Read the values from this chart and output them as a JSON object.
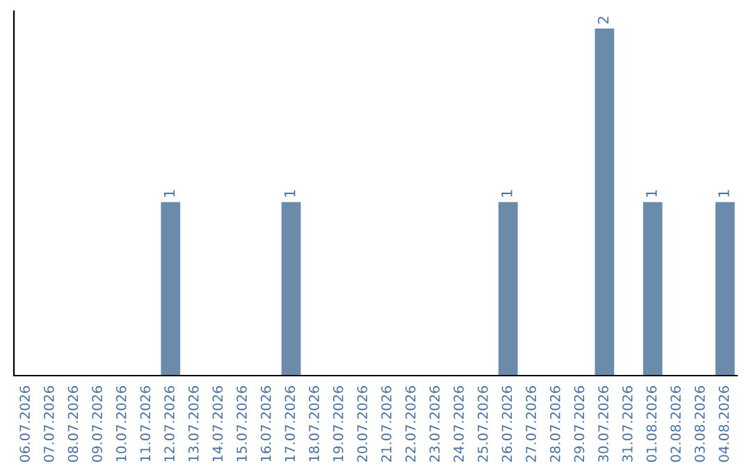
{
  "chart_data": {
    "type": "bar",
    "categories": [
      "06.07.2026",
      "07.07.2026",
      "08.07.2026",
      "09.07.2026",
      "10.07.2026",
      "11.07.2026",
      "12.07.2026",
      "13.07.2026",
      "14.07.2026",
      "15.07.2026",
      "16.07.2026",
      "17.07.2026",
      "18.07.2026",
      "19.07.2026",
      "20.07.2026",
      "21.07.2026",
      "22.07.2026",
      "23.07.2026",
      "24.07.2026",
      "25.07.2026",
      "26.07.2026",
      "27.07.2026",
      "28.07.2026",
      "29.07.2026",
      "30.07.2026",
      "31.07.2026",
      "01.08.2026",
      "02.08.2026",
      "03.08.2026",
      "04.08.2026"
    ],
    "values": [
      0,
      0,
      0,
      0,
      0,
      0,
      1,
      0,
      0,
      0,
      0,
      1,
      0,
      0,
      0,
      0,
      0,
      0,
      0,
      0,
      1,
      0,
      0,
      0,
      2,
      0,
      1,
      0,
      0,
      1
    ],
    "value_labels": [
      null,
      null,
      null,
      null,
      null,
      null,
      "1",
      null,
      null,
      null,
      null,
      "1",
      null,
      null,
      null,
      null,
      null,
      null,
      null,
      null,
      "1",
      null,
      null,
      null,
      "2",
      null,
      "1",
      null,
      null,
      "1"
    ],
    "color": "#6a8caa",
    "tick_labels": "x",
    "grid": false
  }
}
